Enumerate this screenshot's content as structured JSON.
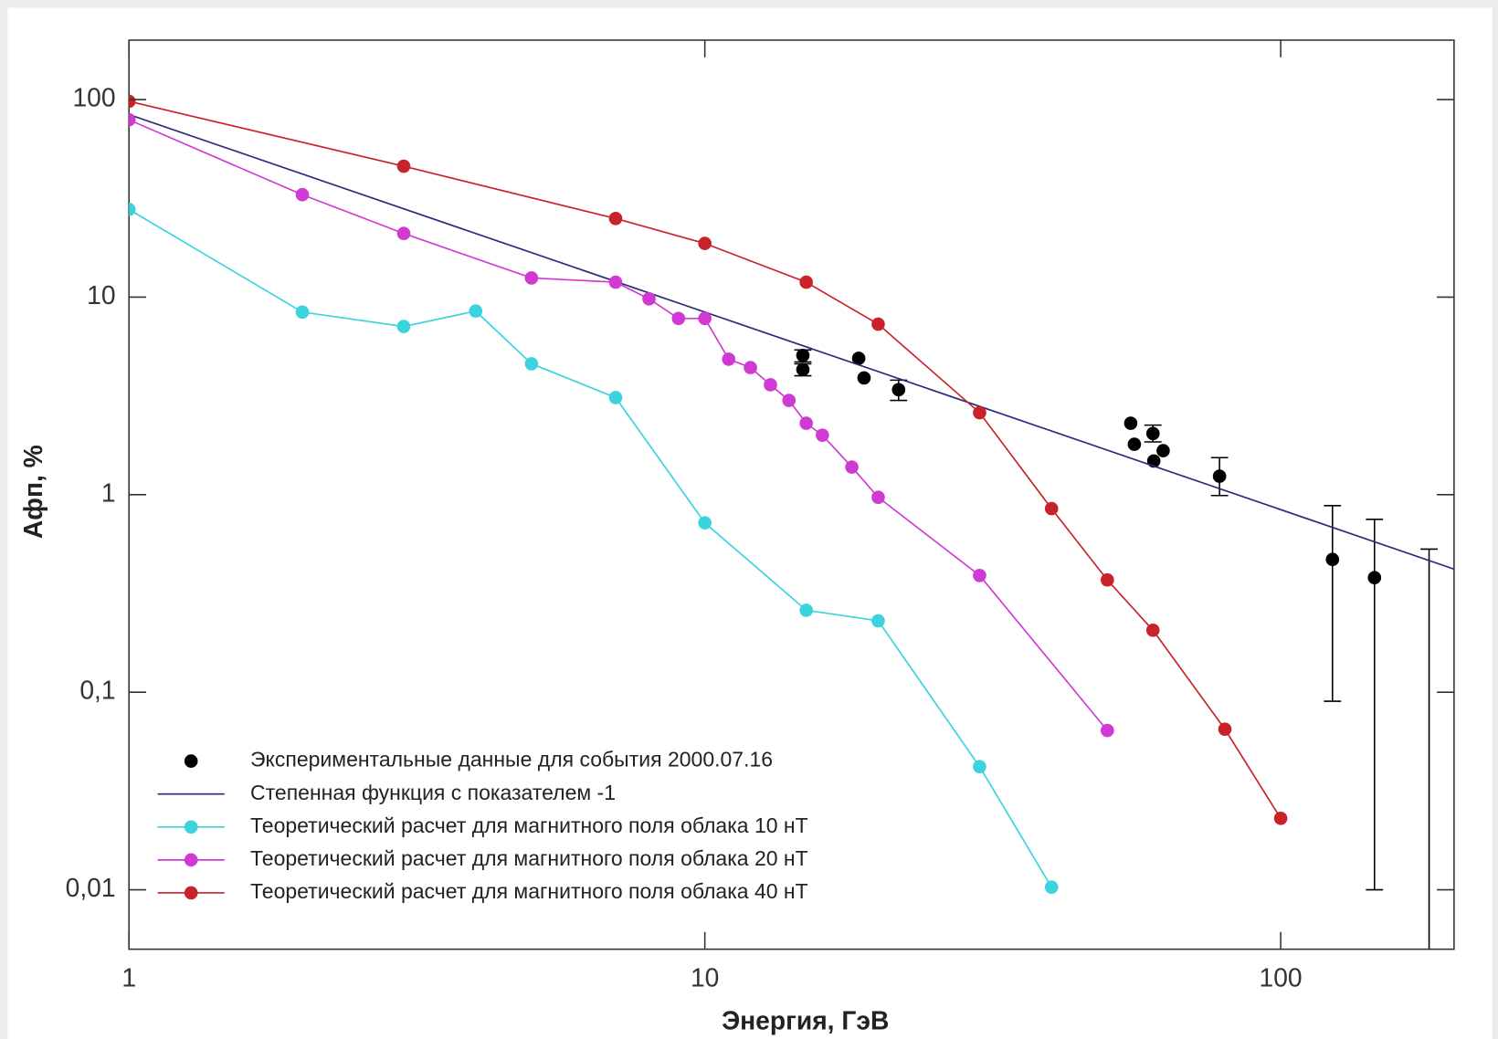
{
  "chart_data": {
    "type": "line",
    "x_label": "Энергия, ГэВ",
    "y_label": "Aфп, %",
    "xscale": "log",
    "yscale": "log",
    "xlim": [
      1,
      200
    ],
    "ylim": [
      0.005,
      200
    ],
    "xticks": [
      1,
      10,
      100
    ],
    "yticks": [
      {
        "value": 0.01,
        "label": "0,01"
      },
      {
        "value": 0.1,
        "label": "0,1"
      },
      1,
      10,
      100
    ],
    "legend": "lower left",
    "series": [
      {
        "name": "Экспериментальные данные для события 2000.07.16",
        "color": "#000000",
        "mode": "markers",
        "x": [
          14.8,
          14.8,
          18.5,
          18.9,
          21.7,
          54.9,
          55.7,
          60,
          60.2,
          62.5,
          78.3,
          123,
          145.5,
          181
        ],
        "values": [
          5.07,
          4.3,
          4.9,
          3.9,
          3.4,
          2.3,
          1.8,
          2.04,
          1.48,
          1.67,
          1.24,
          0.47,
          0.38,
          null
        ],
        "y_low": [
          4.7,
          4.0,
          null,
          null,
          3.0,
          null,
          null,
          1.85,
          null,
          null,
          0.99,
          0.09,
          0.01,
          0.004
        ],
        "y_high": [
          5.4,
          4.6,
          null,
          null,
          3.8,
          null,
          null,
          2.25,
          null,
          null,
          1.54,
          0.88,
          0.75,
          0.53
        ]
      },
      {
        "name": "Степенная функция с показателем -1",
        "color": "#2a2a7a",
        "mode": "line",
        "x": [
          1,
          200
        ],
        "values": [
          84,
          0.42
        ]
      },
      {
        "name": "Теоретический расчет для магнитного поля облака 10 нТ",
        "color": "#3ad3de",
        "mode": "lines+markers",
        "x": [
          1,
          2,
          3,
          4,
          5,
          7,
          10,
          15,
          20,
          30,
          40
        ],
        "values": [
          27.8,
          8.4,
          7.1,
          8.5,
          4.6,
          3.1,
          0.72,
          0.26,
          0.23,
          0.042,
          0.0103
        ]
      },
      {
        "name": "Теоретический расчет для магнитного поля облака 20 нТ",
        "color": "#d03ad4",
        "mode": "lines+markers",
        "x": [
          1,
          2,
          3,
          5,
          7,
          8,
          9,
          10,
          11,
          12,
          13,
          14,
          15,
          16,
          18,
          20,
          30,
          50
        ],
        "values": [
          79,
          33,
          21,
          12.5,
          11.9,
          9.8,
          7.8,
          7.8,
          4.85,
          4.4,
          3.6,
          3.0,
          2.3,
          2.0,
          1.38,
          0.97,
          0.39,
          0.064
        ]
      },
      {
        "name": "Теоретический расчет для магнитного поля облака 40 нТ",
        "color": "#c8232b",
        "mode": "lines+markers",
        "x": [
          1,
          3,
          7,
          10,
          15,
          20,
          30,
          40,
          50,
          60,
          80,
          100
        ],
        "values": [
          98,
          46,
          25,
          18.7,
          11.9,
          7.3,
          2.6,
          0.85,
          0.37,
          0.206,
          0.065,
          0.023
        ]
      }
    ]
  }
}
